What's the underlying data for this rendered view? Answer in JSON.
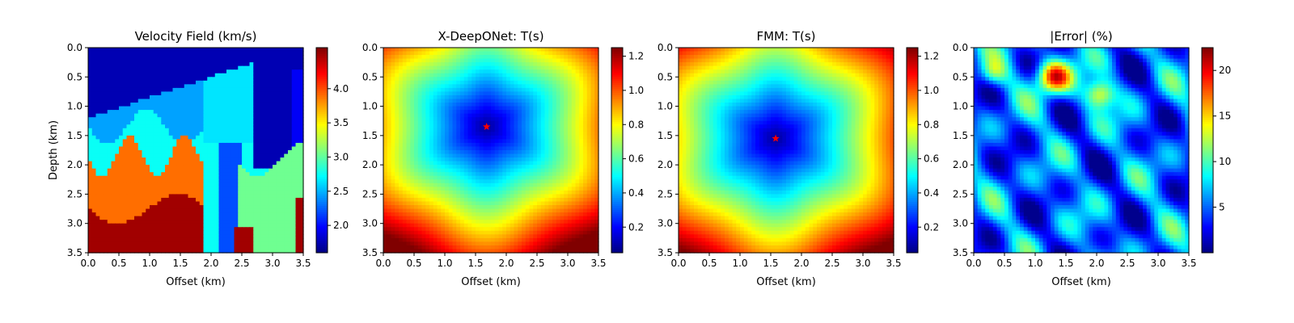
{
  "colormap": "jet",
  "chart_data": [
    {
      "type": "heatmap",
      "title": "Velocity Field (km/s)",
      "xlabel": "Offset (km)",
      "ylabel": "Depth (km)",
      "xlim": [
        0.0,
        3.5
      ],
      "ylim": [
        3.5,
        0.0
      ],
      "xticks": [
        "0.0",
        "0.5",
        "1.0",
        "1.5",
        "2.0",
        "2.5",
        "3.0",
        "3.5"
      ],
      "yticks": [
        "0.0",
        "0.5",
        "1.0",
        "1.5",
        "2.0",
        "2.5",
        "3.0",
        "3.5"
      ],
      "colorbar": {
        "range": [
          1.6,
          4.6
        ],
        "ticks": [
          "2.0",
          "2.5",
          "3.0",
          "3.5",
          "4.0"
        ]
      }
    },
    {
      "type": "heatmap",
      "title": "X-DeepONet: T(s)",
      "xlabel": "Offset (km)",
      "ylabel": "",
      "xlim": [
        0.0,
        3.5
      ],
      "ylim": [
        3.5,
        0.0
      ],
      "xticks": [
        "0.0",
        "0.5",
        "1.0",
        "1.5",
        "2.0",
        "2.5",
        "3.0",
        "3.5"
      ],
      "yticks": [
        "0.0",
        "0.5",
        "1.0",
        "1.5",
        "2.0",
        "2.5",
        "3.0",
        "3.5"
      ],
      "source": {
        "x": 1.68,
        "y": 1.35,
        "marker": "star",
        "color": "#ff0000"
      },
      "colorbar": {
        "range": [
          0.05,
          1.25
        ],
        "ticks": [
          "0.2",
          "0.4",
          "0.6",
          "0.8",
          "1.0",
          "1.2"
        ]
      }
    },
    {
      "type": "heatmap",
      "title": "FMM: T(s)",
      "xlabel": "Offset (km)",
      "ylabel": "",
      "xlim": [
        0.0,
        3.5
      ],
      "ylim": [
        3.5,
        0.0
      ],
      "xticks": [
        "0.0",
        "0.5",
        "1.0",
        "1.5",
        "2.0",
        "2.5",
        "3.0",
        "3.5"
      ],
      "yticks": [
        "0.0",
        "0.5",
        "1.0",
        "1.5",
        "2.0",
        "2.5",
        "3.0",
        "3.5"
      ],
      "source": {
        "x": 1.58,
        "y": 1.55,
        "marker": "star",
        "color": "#ff0000"
      },
      "colorbar": {
        "range": [
          0.05,
          1.25
        ],
        "ticks": [
          "0.2",
          "0.4",
          "0.6",
          "0.8",
          "1.0",
          "1.2"
        ]
      }
    },
    {
      "type": "heatmap",
      "title": "|Error| (%)",
      "xlabel": "Offset (km)",
      "ylabel": "",
      "xlim": [
        0.0,
        3.5
      ],
      "ylim": [
        3.5,
        0.0
      ],
      "xticks": [
        "0.0",
        "0.5",
        "1.0",
        "1.5",
        "2.0",
        "2.5",
        "3.0",
        "3.5"
      ],
      "yticks": [
        "0.0",
        "0.5",
        "1.0",
        "1.5",
        "2.0",
        "2.5",
        "3.0",
        "3.5"
      ],
      "colorbar": {
        "range": [
          0.0,
          22.5
        ],
        "ticks": [
          "5",
          "10",
          "15",
          "20"
        ]
      }
    }
  ]
}
